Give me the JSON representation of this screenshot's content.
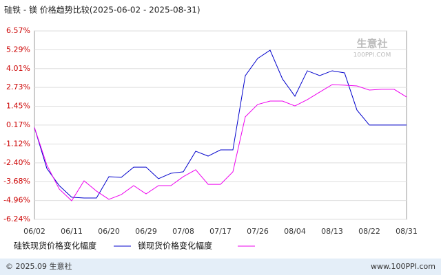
{
  "chart_data": {
    "type": "line",
    "title": "硅铁 - 镁 价格趋势比较(2025-06-02 - 2025-08-31)",
    "x": [
      "06/02",
      null,
      null,
      "06/11",
      null,
      null,
      "06/20",
      null,
      null,
      "06/29",
      null,
      null,
      "07/08",
      null,
      null,
      "07/17",
      null,
      null,
      "07/26",
      null,
      null,
      "08/04",
      null,
      null,
      "08/13",
      null,
      null,
      "08/22",
      null,
      null,
      "08/31"
    ],
    "series": [
      {
        "name": "硅铁现货价格变化幅度",
        "color": "#0000cc",
        "values": [
          0,
          -2.78,
          -3.95,
          -4.74,
          -4.79,
          -4.79,
          -3.34,
          -3.39,
          -2.69,
          -2.69,
          -3.48,
          -3.11,
          -3.01,
          -1.61,
          -1.94,
          -1.52,
          -1.52,
          3.53,
          4.7,
          5.26,
          3.3,
          2.13,
          3.86,
          3.53,
          3.86,
          3.72,
          1.19,
          0.17,
          0.17,
          0.17,
          0.17
        ]
      },
      {
        "name": "镁现货价格变化幅度",
        "color": "#ee00ee",
        "values": [
          0,
          -2.55,
          -4.18,
          -4.98,
          -3.62,
          -4.32,
          -4.88,
          -4.56,
          -3.95,
          -4.51,
          -3.95,
          -3.95,
          -3.34,
          -2.87,
          -3.86,
          -3.86,
          -3.01,
          0.73,
          1.57,
          1.8,
          1.8,
          1.47,
          1.9,
          2.41,
          2.92,
          2.88,
          2.83,
          2.55,
          2.6,
          2.6,
          2.08
        ]
      }
    ],
    "ylim": [
      -6.24,
      6.57
    ],
    "yticks": [
      {
        "value": 6.57,
        "label": "6.57%"
      },
      {
        "value": 5.29,
        "label": "5.29%"
      },
      {
        "value": 4.01,
        "label": "4.01%"
      },
      {
        "value": 2.73,
        "label": "2.73%"
      },
      {
        "value": 1.45,
        "label": "1.45%"
      },
      {
        "value": 0.17,
        "label": "0.17%"
      },
      {
        "value": -1.12,
        "label": "-1.12%"
      },
      {
        "value": -2.4,
        "label": "-2.40%"
      },
      {
        "value": -3.68,
        "label": "-3.68%"
      },
      {
        "value": -4.96,
        "label": "-4.96%"
      },
      {
        "value": -6.24,
        "label": "-6.24%"
      }
    ],
    "grid": true,
    "watermark": [
      "生意社",
      "100PPI.COM"
    ],
    "footer": [
      "© 2025.09 生意社",
      "www.100PPI.com"
    ]
  }
}
